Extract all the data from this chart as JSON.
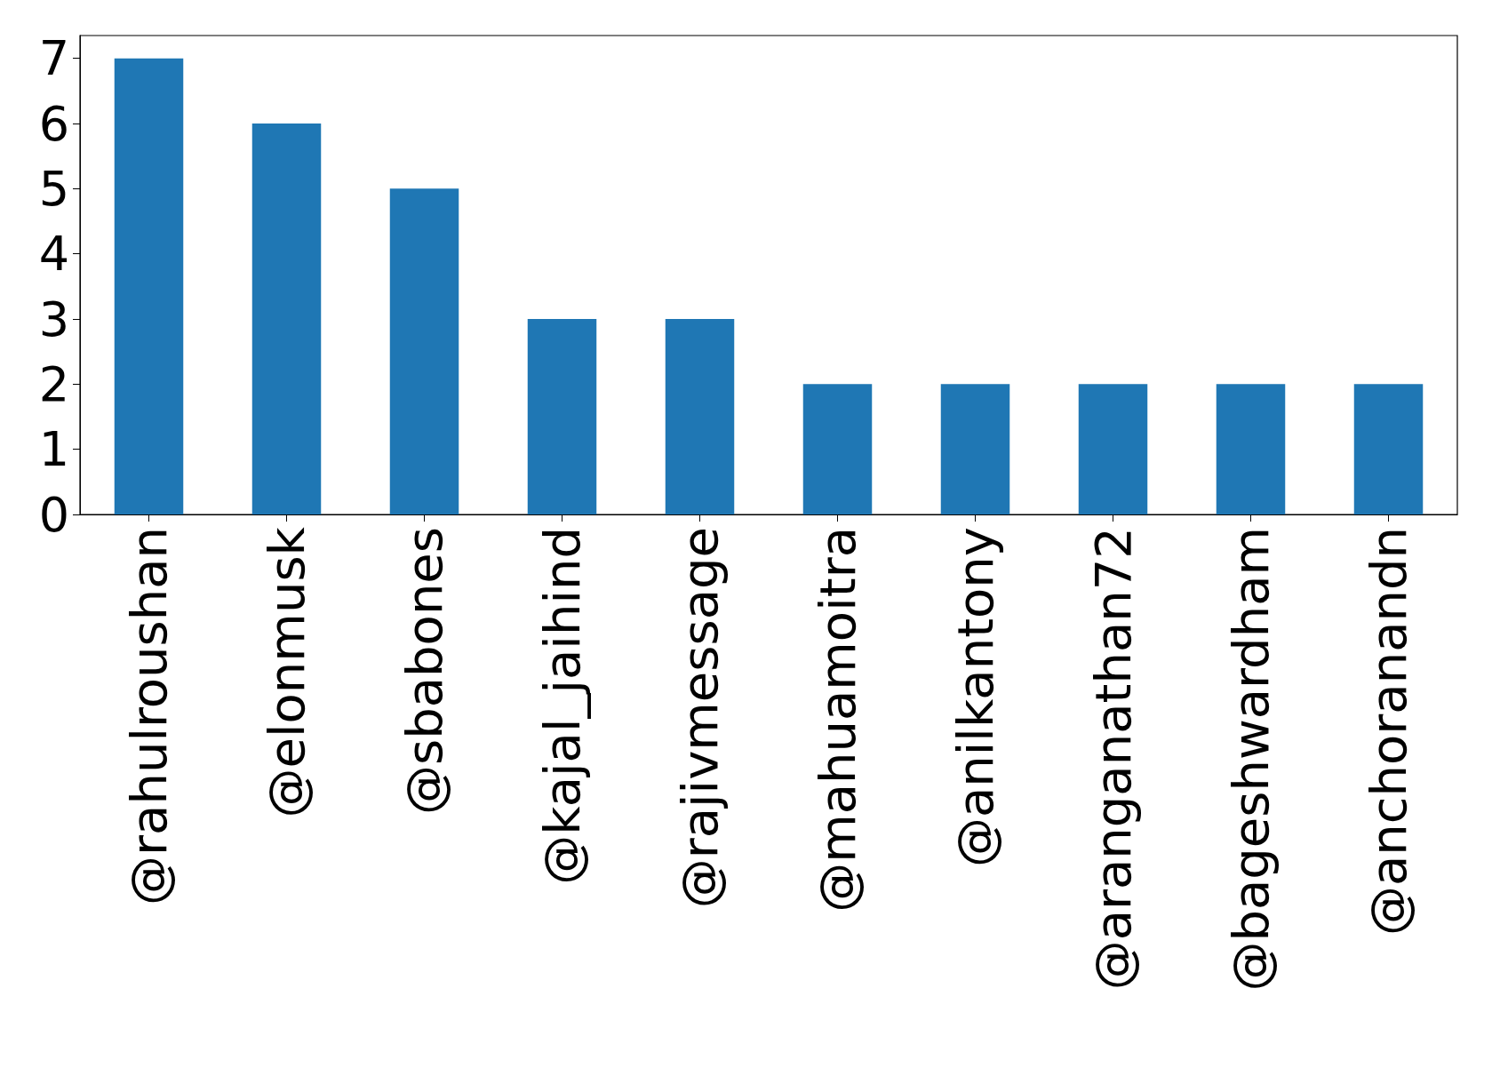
{
  "chart_data": {
    "type": "bar",
    "categories": [
      "@rahulroushan",
      "@elonmusk",
      "@sbabones",
      "@kajal_jaihind",
      "@rajivmessage",
      "@mahuamoitra",
      "@anilkantony",
      "@aranganathan72",
      "@bageshwardham",
      "@anchoranandn"
    ],
    "values": [
      7,
      6,
      5,
      3,
      3,
      2,
      2,
      2,
      2,
      2
    ],
    "color": "#1f77b4",
    "ylim": [
      0,
      7.35
    ],
    "yticks": [
      0,
      1,
      2,
      3,
      4,
      5,
      6,
      7
    ],
    "grid": false
  }
}
